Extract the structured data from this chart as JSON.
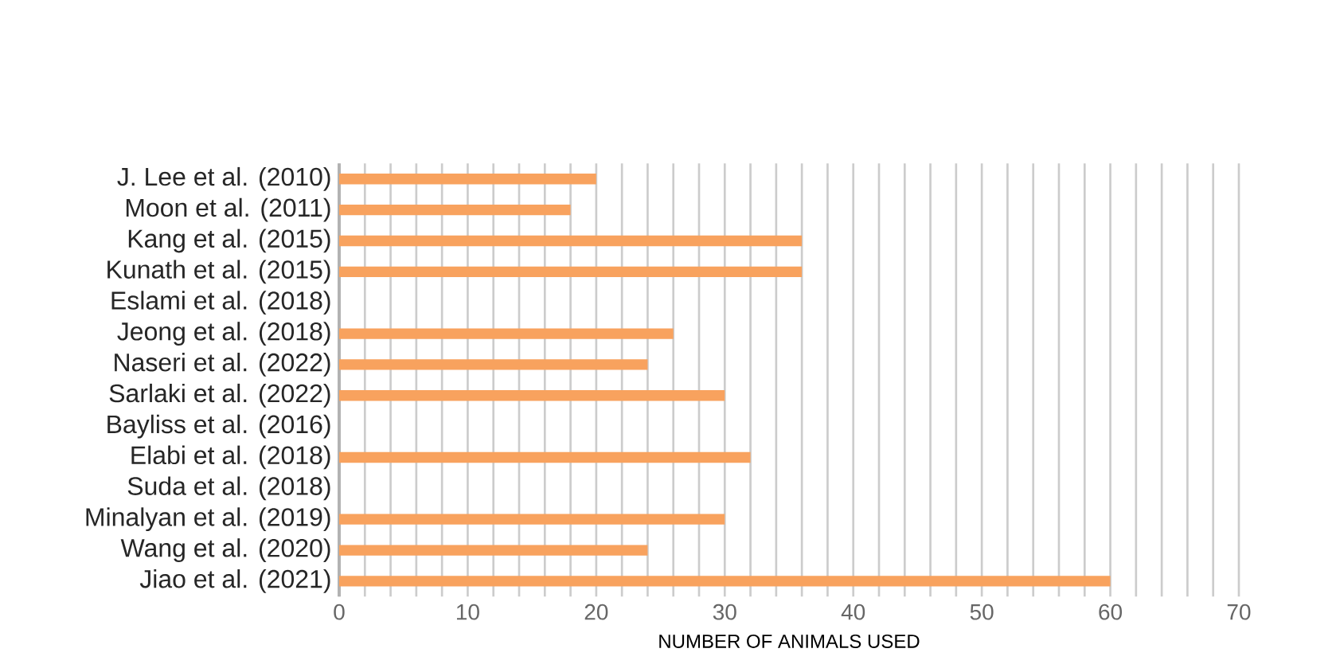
{
  "chart_data": {
    "type": "bar",
    "orientation": "horizontal",
    "xlabel": "NUMBER OF ANIMALS USED",
    "categories": [
      "J. Lee et al. (2010)",
      "Moon et al. (2011)",
      "Kang et al. (2015)",
      "Kunath et al. (2015)",
      "Eslami et al. (2018)",
      "Jeong et al. (2018)",
      "Naseri et al. (2022)",
      "Sarlaki et al. (2022)",
      "Bayliss et al. (2016)",
      "Elabi et al. (2018)",
      "Suda et al. (2018)",
      "Minalyan et al. (2019)",
      "Wang et al. (2020)",
      "Jiao et al. (2021)"
    ],
    "values": [
      20,
      18,
      36,
      36,
      null,
      26,
      24,
      30,
      null,
      32,
      null,
      30,
      24,
      60
    ],
    "color": "#f8a25e",
    "xlim": [
      0,
      70
    ],
    "xticks": [
      0,
      {
        "value": 2,
        "label": null
      },
      {
        "value": 4,
        "label": null
      },
      {
        "value": 6,
        "label": null
      },
      {
        "value": 8,
        "label": null
      },
      10,
      {
        "value": 12,
        "label": null
      },
      {
        "value": 14,
        "label": null
      },
      {
        "value": 16,
        "label": null
      },
      {
        "value": 18,
        "label": null
      },
      20,
      {
        "value": 22,
        "label": null
      },
      {
        "value": 24,
        "label": null
      },
      {
        "value": 26,
        "label": null
      },
      {
        "value": 28,
        "label": null
      },
      30,
      {
        "value": 32,
        "label": null
      },
      {
        "value": 34,
        "label": null
      },
      {
        "value": 36,
        "label": null
      },
      {
        "value": 38,
        "label": null
      },
      40,
      {
        "value": 42,
        "label": null
      },
      {
        "value": 44,
        "label": null
      },
      {
        "value": 46,
        "label": null
      },
      {
        "value": 48,
        "label": null
      },
      50,
      {
        "value": 52,
        "label": null
      },
      {
        "value": 54,
        "label": null
      },
      {
        "value": 56,
        "label": null
      },
      {
        "value": 58,
        "label": null
      },
      60,
      {
        "value": 62,
        "label": null
      },
      {
        "value": 64,
        "label": null
      },
      {
        "value": 66,
        "label": null
      },
      {
        "value": 68,
        "label": null
      },
      70
    ],
    "grid": "x"
  }
}
